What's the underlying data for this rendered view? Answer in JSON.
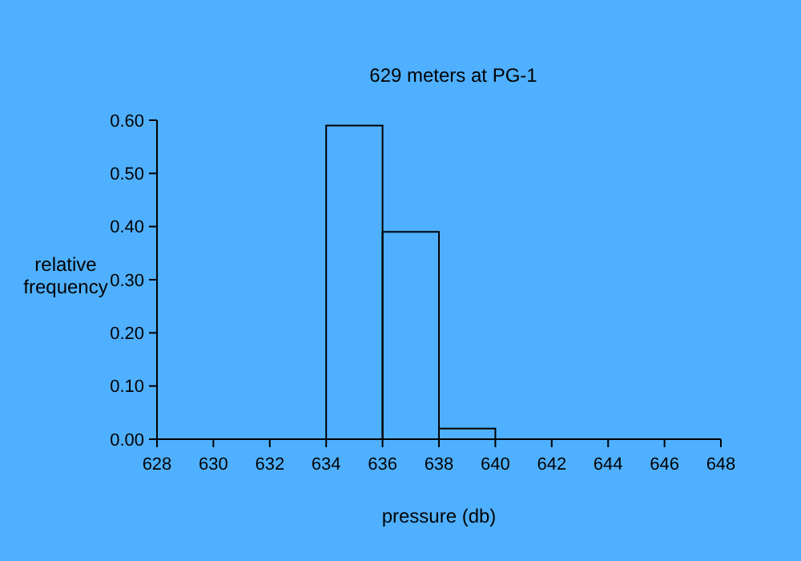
{
  "chart_data": {
    "type": "histogram",
    "title": "629 meters at PG-1",
    "xlabel": "pressure (db)",
    "ylabel": "relative\nfrequency",
    "bins": [
      634,
      636,
      638,
      640
    ],
    "values": [
      0.59,
      0.39,
      0.02
    ],
    "color": "#000000",
    "xlim": [
      628,
      648
    ],
    "xticks": [
      628,
      630,
      632,
      634,
      636,
      638,
      640,
      642,
      644,
      646,
      648
    ],
    "ylim": [
      0,
      0.6
    ],
    "yticks": [
      {
        "value": 0,
        "label": "0.00"
      },
      {
        "value": 0.1,
        "label": "0.10"
      },
      {
        "value": 0.2,
        "label": "0.20"
      },
      {
        "value": 0.3,
        "label": "0.30"
      },
      {
        "value": 0.4,
        "label": "0.40"
      },
      {
        "value": 0.5,
        "label": "0.50"
      },
      {
        "value": 0.6,
        "label": "0.60"
      }
    ],
    "grid": false
  }
}
